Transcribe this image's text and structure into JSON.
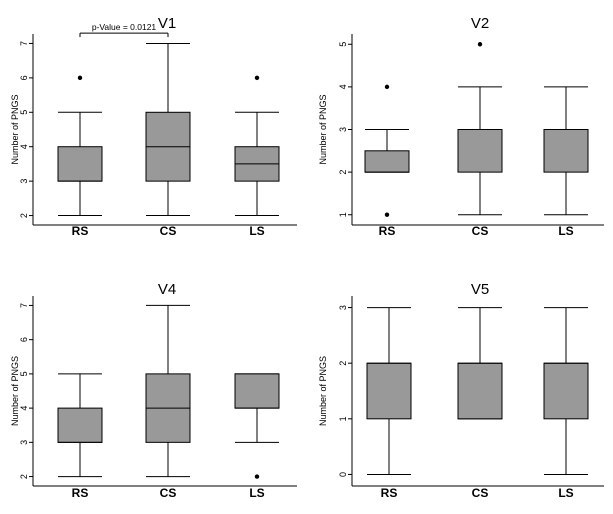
{
  "chart_data": [
    {
      "type": "box",
      "title": "V1",
      "ylabel": "Number of PNGS",
      "xlabel": "",
      "ylim": [
        1.9,
        7.1
      ],
      "yticks": [
        2,
        3,
        4,
        5,
        6,
        7
      ],
      "categories": [
        "RS",
        "CS",
        "LS"
      ],
      "boxes": [
        {
          "min": 2,
          "q1": 3,
          "median": 3,
          "q3": 4,
          "max": 5,
          "outliers": [
            6
          ]
        },
        {
          "min": 2,
          "q1": 3,
          "median": 4,
          "q3": 5,
          "max": 7,
          "outliers": []
        },
        {
          "min": 2,
          "q1": 3,
          "median": 3.5,
          "q3": 4,
          "max": 5,
          "outliers": [
            6
          ]
        }
      ],
      "annotation": {
        "text": "p-Value = 0.0121",
        "from": 0,
        "to": 1,
        "y": 7.3
      }
    },
    {
      "type": "box",
      "title": "V2",
      "ylabel": "Number of PNGS",
      "xlabel": "",
      "ylim": [
        0.9,
        5.1
      ],
      "yticks": [
        1,
        2,
        3,
        4,
        5
      ],
      "categories": [
        "RS",
        "CS",
        "LS"
      ],
      "boxes": [
        {
          "min": 2,
          "q1": 2,
          "median": 2,
          "q3": 2.5,
          "max": 3,
          "outliers": [
            1,
            4
          ]
        },
        {
          "min": 1,
          "q1": 2,
          "median": 3,
          "q3": 3,
          "max": 4,
          "outliers": [
            5
          ]
        },
        {
          "min": 1,
          "q1": 2,
          "median": 3,
          "q3": 3,
          "max": 4,
          "outliers": []
        }
      ]
    },
    {
      "type": "box",
      "title": "V4",
      "ylabel": "Number of PNGS",
      "xlabel": "",
      "ylim": [
        1.9,
        7.1
      ],
      "yticks": [
        2,
        3,
        4,
        5,
        6,
        7
      ],
      "categories": [
        "RS",
        "CS",
        "LS"
      ],
      "boxes": [
        {
          "min": 2,
          "q1": 3,
          "median": 3,
          "q3": 4,
          "max": 5,
          "outliers": []
        },
        {
          "min": 2,
          "q1": 3,
          "median": 4,
          "q3": 5,
          "max": 7,
          "outliers": []
        },
        {
          "min": 3,
          "q1": 4,
          "median": 4,
          "q3": 5,
          "max": 5,
          "outliers": [
            2
          ]
        }
      ]
    },
    {
      "type": "box",
      "title": "V5",
      "ylabel": "Number of PNGS",
      "xlabel": "",
      "ylim": [
        -0.1,
        3.1
      ],
      "yticks": [
        0,
        1,
        2,
        3
      ],
      "categories": [
        "RS",
        "CS",
        "LS"
      ],
      "boxes": [
        {
          "min": 0,
          "q1": 1,
          "median": 2,
          "q3": 2,
          "max": 3,
          "outliers": []
        },
        {
          "min": 1,
          "q1": 1,
          "median": 2,
          "q3": 2,
          "max": 3,
          "outliers": []
        },
        {
          "min": 0,
          "q1": 1,
          "median": 2,
          "q3": 2,
          "max": 3,
          "outliers": []
        }
      ]
    }
  ],
  "colors": {
    "box_fill": "#999999",
    "stroke": "#000000",
    "background": "#ffffff"
  }
}
